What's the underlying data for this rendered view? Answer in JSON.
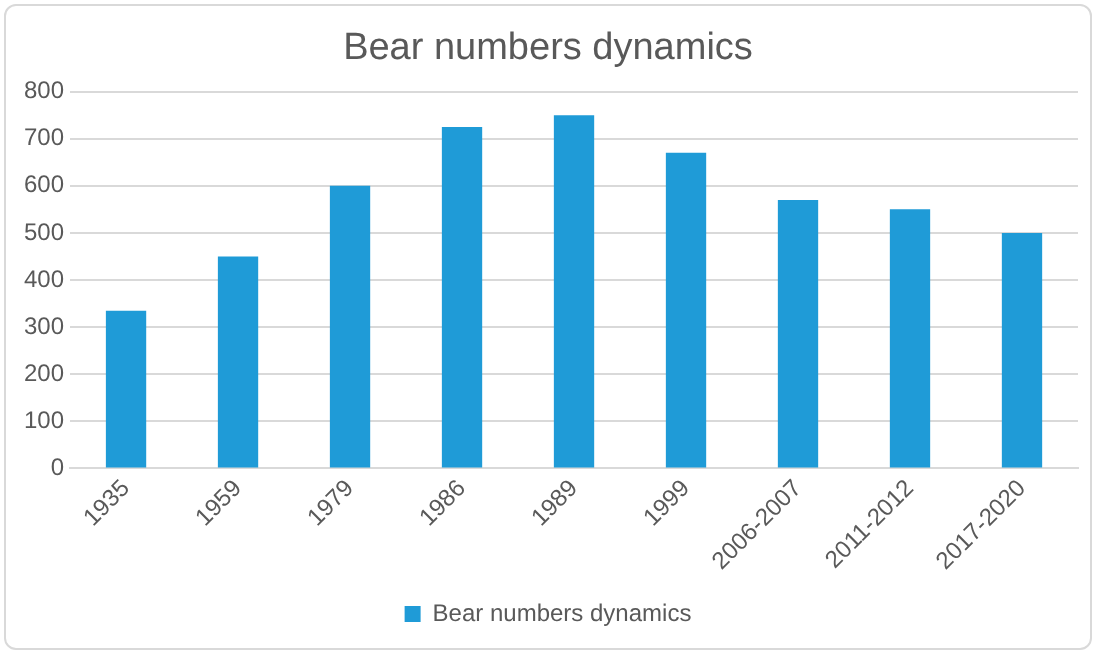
{
  "chart_data": {
    "type": "bar",
    "title": "Bear numbers dynamics",
    "categories": [
      "1935",
      "1959",
      "1979",
      "1986",
      "1989",
      "1999",
      "2006-2007",
      "2011-2012",
      "2017-2020"
    ],
    "series": [
      {
        "name": "Bear numbers dynamics",
        "color": "#1f9bd7",
        "values": [
          335,
          450,
          600,
          725,
          750,
          670,
          570,
          550,
          500
        ]
      }
    ],
    "ylim": [
      0,
      800
    ],
    "yticks": [
      0,
      100,
      200,
      300,
      400,
      500,
      600,
      700,
      800
    ],
    "grid": "y",
    "legend": "bottom"
  }
}
